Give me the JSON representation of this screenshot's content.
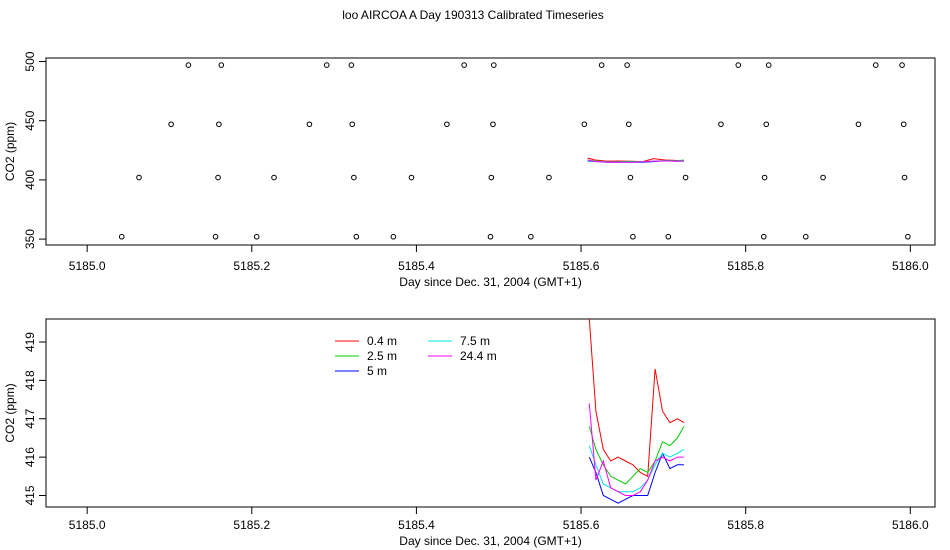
{
  "title": "loo AIRCOA A  Day 190313  Calibrated Timeseries",
  "chart_data": [
    {
      "type": "scatter",
      "xlabel": "Day since Dec. 31, 2004 (GMT+1)",
      "ylabel": "CO2 (ppm)",
      "xlim": [
        5184.95,
        5186.03
      ],
      "ylim": [
        345,
        503
      ],
      "x_ticks": [
        5185.0,
        5185.2,
        5185.4,
        5185.6,
        5185.8,
        5186.0
      ],
      "x_tick_labels": [
        "5185.0",
        "5185.2",
        "5185.4",
        "5185.6",
        "5185.8",
        "5186.0"
      ],
      "y_ticks": [
        350,
        400,
        450,
        500
      ],
      "y_tick_labels": [
        "350",
        "400",
        "450",
        "500"
      ],
      "points": [
        [
          5185.042,
          352
        ],
        [
          5185.063,
          402
        ],
        [
          5185.102,
          447
        ],
        [
          5185.123,
          497
        ],
        [
          5185.156,
          352
        ],
        [
          5185.159,
          402
        ],
        [
          5185.16,
          447
        ],
        [
          5185.163,
          497
        ],
        [
          5185.206,
          352
        ],
        [
          5185.227,
          402
        ],
        [
          5185.27,
          447
        ],
        [
          5185.291,
          497
        ],
        [
          5185.321,
          497
        ],
        [
          5185.322,
          447
        ],
        [
          5185.324,
          402
        ],
        [
          5185.327,
          352
        ],
        [
          5185.372,
          352
        ],
        [
          5185.394,
          402
        ],
        [
          5185.437,
          447
        ],
        [
          5185.458,
          497
        ],
        [
          5185.49,
          352
        ],
        [
          5185.491,
          402
        ],
        [
          5185.493,
          447
        ],
        [
          5185.494,
          497
        ],
        [
          5185.539,
          352
        ],
        [
          5185.561,
          402
        ],
        [
          5185.604,
          447
        ],
        [
          5185.625,
          497
        ],
        [
          5185.656,
          497
        ],
        [
          5185.658,
          447
        ],
        [
          5185.66,
          402
        ],
        [
          5185.663,
          352
        ],
        [
          5185.706,
          352
        ],
        [
          5185.727,
          402
        ],
        [
          5185.77,
          447
        ],
        [
          5185.791,
          497
        ],
        [
          5185.822,
          352
        ],
        [
          5185.823,
          402
        ],
        [
          5185.825,
          447
        ],
        [
          5185.828,
          497
        ],
        [
          5185.873,
          352
        ],
        [
          5185.894,
          402
        ],
        [
          5185.937,
          447
        ],
        [
          5185.958,
          497
        ],
        [
          5185.99,
          497
        ],
        [
          5185.992,
          447
        ],
        [
          5185.993,
          402
        ],
        [
          5185.997,
          352
        ]
      ],
      "series": [
        {
          "color": "#ff0000",
          "x": [
            5185.608,
            5185.617,
            5185.631,
            5185.646,
            5185.66,
            5185.675,
            5185.688,
            5185.702,
            5185.715,
            5185.725
          ],
          "values": [
            418.5,
            416.8,
            415.9,
            416.0,
            415.8,
            415.5,
            418.0,
            416.8,
            416.5,
            416.4
          ]
        },
        {
          "color": "#00cc00",
          "x": [
            5185.608,
            5185.617,
            5185.631,
            5185.646,
            5185.66,
            5185.675,
            5185.688,
            5185.702,
            5185.715,
            5185.725
          ],
          "values": [
            416.8,
            416.0,
            415.4,
            415.3,
            415.6,
            415.5,
            415.9,
            416.3,
            416.2,
            416.7
          ]
        },
        {
          "color": "#0000ff",
          "x": [
            5185.608,
            5185.617,
            5185.631,
            5185.646,
            5185.66,
            5185.675,
            5185.688,
            5185.702,
            5185.715,
            5185.725
          ],
          "values": [
            415.9,
            415.6,
            415.0,
            414.9,
            415.0,
            415.0,
            415.5,
            416.1,
            415.8,
            415.9
          ]
        },
        {
          "color": "#00e5e5",
          "x": [
            5185.608,
            5185.617,
            5185.631,
            5185.646,
            5185.66,
            5185.675,
            5185.688,
            5185.702,
            5185.715,
            5185.725
          ],
          "values": [
            416.3,
            415.7,
            415.2,
            415.1,
            415.1,
            415.4,
            415.7,
            416.1,
            416.0,
            416.2
          ]
        },
        {
          "color": "#ff00ff",
          "x": [
            5185.608,
            5185.617,
            5185.631,
            5185.646,
            5185.66,
            5185.675,
            5185.688,
            5185.702,
            5185.715,
            5185.725
          ],
          "values": [
            417.0,
            415.5,
            415.1,
            415.0,
            415.0,
            415.3,
            415.9,
            416.0,
            415.9,
            416.0
          ]
        }
      ]
    },
    {
      "type": "line",
      "xlabel": "Day since Dec. 31, 2004 (GMT+1)",
      "ylabel": "CO2 (ppm)",
      "xlim": [
        5184.95,
        5186.03
      ],
      "ylim": [
        414.7,
        419.6
      ],
      "x_ticks": [
        5185.0,
        5185.2,
        5185.4,
        5185.6,
        5185.8,
        5186.0
      ],
      "x_tick_labels": [
        "5185.0",
        "5185.2",
        "5185.4",
        "5185.6",
        "5185.8",
        "5186.0"
      ],
      "y_ticks": [
        415,
        416,
        417,
        418,
        419
      ],
      "y_tick_labels": [
        "415",
        "416",
        "417",
        "418",
        "419"
      ],
      "legend_position": "top-left",
      "series": [
        {
          "name": "0.4 m",
          "color": "#ff0000",
          "x": [
            5185.61,
            5185.618,
            5185.627,
            5185.636,
            5185.645,
            5185.654,
            5185.663,
            5185.672,
            5185.681,
            5185.69,
            5185.699,
            5185.708,
            5185.717,
            5185.725
          ],
          "values": [
            419.6,
            417.2,
            416.2,
            415.9,
            416.0,
            415.9,
            415.8,
            415.6,
            415.5,
            418.3,
            417.2,
            416.9,
            417.0,
            416.9
          ]
        },
        {
          "name": "2.5 m",
          "color": "#00cc00",
          "x": [
            5185.61,
            5185.618,
            5185.627,
            5185.636,
            5185.645,
            5185.654,
            5185.663,
            5185.672,
            5185.681,
            5185.69,
            5185.699,
            5185.708,
            5185.717,
            5185.725
          ],
          "values": [
            416.8,
            416.2,
            415.8,
            415.5,
            415.4,
            415.3,
            415.5,
            415.7,
            415.6,
            415.9,
            416.4,
            416.3,
            416.5,
            416.8
          ]
        },
        {
          "name": "5 m",
          "color": "#0000ff",
          "x": [
            5185.61,
            5185.618,
            5185.627,
            5185.636,
            5185.645,
            5185.654,
            5185.663,
            5185.672,
            5185.681,
            5185.69,
            5185.699,
            5185.708,
            5185.717,
            5185.725
          ],
          "values": [
            416.0,
            415.6,
            415.0,
            414.9,
            414.8,
            414.9,
            415.0,
            415.0,
            415.0,
            415.6,
            416.1,
            415.7,
            415.8,
            415.8
          ]
        },
        {
          "name": "7.5 m",
          "color": "#00e5e5",
          "x": [
            5185.61,
            5185.618,
            5185.627,
            5185.636,
            5185.645,
            5185.654,
            5185.663,
            5185.672,
            5185.681,
            5185.69,
            5185.699,
            5185.708,
            5185.717,
            5185.725
          ],
          "values": [
            416.3,
            415.8,
            415.3,
            415.2,
            415.1,
            415.1,
            415.1,
            415.2,
            415.4,
            415.8,
            416.1,
            416.0,
            416.1,
            416.2
          ]
        },
        {
          "name": "24.4 m",
          "color": "#ff00ff",
          "x": [
            5185.61,
            5185.618,
            5185.627,
            5185.636,
            5185.645,
            5185.654,
            5185.663,
            5185.672,
            5185.681,
            5185.69,
            5185.699,
            5185.708,
            5185.717,
            5185.725
          ],
          "values": [
            417.4,
            415.4,
            415.9,
            415.2,
            415.1,
            415.0,
            415.0,
            415.1,
            415.4,
            415.9,
            416.0,
            415.9,
            416.0,
            416.0
          ]
        }
      ]
    }
  ]
}
